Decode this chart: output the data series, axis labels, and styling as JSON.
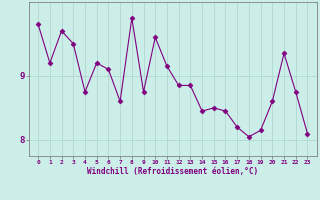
{
  "x": [
    0,
    1,
    2,
    3,
    4,
    5,
    6,
    7,
    8,
    9,
    10,
    11,
    12,
    13,
    14,
    15,
    16,
    17,
    18,
    19,
    20,
    21,
    22,
    23
  ],
  "y": [
    9.8,
    9.2,
    9.7,
    9.5,
    8.75,
    9.2,
    9.1,
    8.6,
    9.9,
    8.75,
    9.6,
    9.15,
    8.85,
    8.85,
    8.45,
    8.5,
    8.45,
    8.2,
    8.05,
    8.15,
    8.6,
    9.35,
    8.75,
    8.1
  ],
  "line_color": "#800080",
  "marker": "D",
  "marker_size": 2.5,
  "bg_color": "#cceee8",
  "grid_color": "#b0d8d0",
  "xlabel": "Windchill (Refroidissement éolien,°C)",
  "ylim": [
    7.75,
    10.15
  ],
  "yticks": [
    8,
    9
  ],
  "xticks": [
    0,
    1,
    2,
    3,
    4,
    5,
    6,
    7,
    8,
    9,
    10,
    11,
    12,
    13,
    14,
    15,
    16,
    17,
    18,
    19,
    20,
    21,
    22,
    23
  ],
  "xlabel_color": "#800080",
  "tick_color": "#800080",
  "spine_color": "#808080"
}
